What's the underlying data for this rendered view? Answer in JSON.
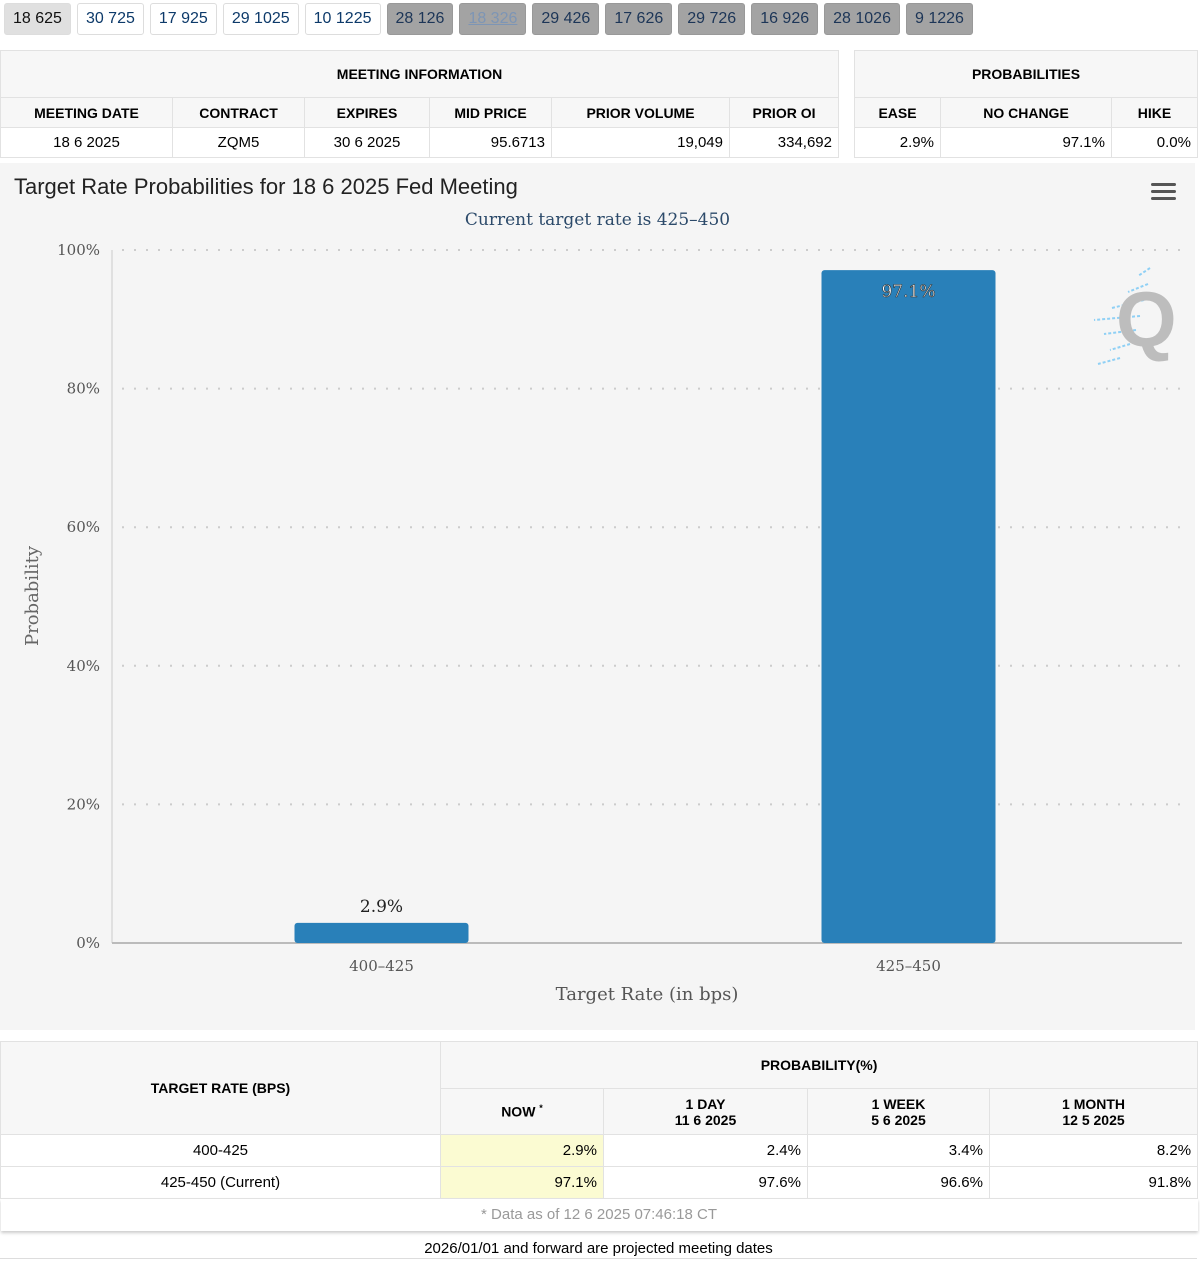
{
  "tabs": [
    {
      "label": "18 625",
      "state": "active"
    },
    {
      "label": "30 725",
      "state": "normal"
    },
    {
      "label": "17 925",
      "state": "normal"
    },
    {
      "label": "29 1025",
      "state": "normal"
    },
    {
      "label": "10 1225",
      "state": "normal"
    },
    {
      "label": "28 126",
      "state": "projected"
    },
    {
      "label": "18 326",
      "state": "projected-faded"
    },
    {
      "label": "29 426",
      "state": "projected"
    },
    {
      "label": "17 626",
      "state": "projected"
    },
    {
      "label": "29 726",
      "state": "projected"
    },
    {
      "label": "16 926",
      "state": "projected"
    },
    {
      "label": "28 1026",
      "state": "projected"
    },
    {
      "label": "9 1226",
      "state": "projected"
    }
  ],
  "meeting_info": {
    "title": "MEETING INFORMATION",
    "headers": [
      "MEETING DATE",
      "CONTRACT",
      "EXPIRES",
      "MID PRICE",
      "PRIOR VOLUME",
      "PRIOR OI"
    ],
    "values": [
      "18 6 2025",
      "ZQM5",
      "30 6 2025",
      "95.6713",
      "19,049",
      "334,692"
    ]
  },
  "probabilities": {
    "title": "PROBABILITIES",
    "headers": [
      "EASE",
      "NO CHANGE",
      "HIKE"
    ],
    "values": [
      "2.9%",
      "97.1%",
      "0.0%"
    ]
  },
  "chart_data": {
    "type": "bar",
    "title": "Target Rate Probabilities for 18 6 2025 Fed Meeting",
    "subtitle": "Current target rate is 425–450",
    "xlabel": "Target Rate (in bps)",
    "ylabel": "Probability",
    "categories": [
      "400–425",
      "425–450"
    ],
    "values": [
      2.9,
      97.1
    ],
    "data_labels": [
      "2.9%",
      "97.1%"
    ],
    "ylim": [
      0,
      100
    ],
    "yticks": [
      "0%",
      "20%",
      "40%",
      "60%",
      "80%",
      "100%"
    ],
    "grid": true,
    "color": "#2980b9"
  },
  "bottom_table": {
    "rate_header": "TARGET RATE (BPS)",
    "prob_header": "PROBABILITY(%)",
    "cols": [
      {
        "l1": "NOW",
        "l2": "",
        "star": "*"
      },
      {
        "l1": "1 DAY",
        "l2": "11 6 2025"
      },
      {
        "l1": "1 WEEK",
        "l2": "5 6 2025"
      },
      {
        "l1": "1 MONTH",
        "l2": "12 5 2025"
      }
    ],
    "rows": [
      {
        "rate": "400-425",
        "vals": [
          "2.9%",
          "2.4%",
          "3.4%",
          "8.2%"
        ]
      },
      {
        "rate": "425-450 (Current)",
        "vals": [
          "97.1%",
          "97.6%",
          "96.6%",
          "91.8%"
        ]
      }
    ],
    "footnote": "* Data as of 12 6 2025 07:46:18 CT"
  },
  "note": "2026/01/01 and forward are projected meeting dates"
}
